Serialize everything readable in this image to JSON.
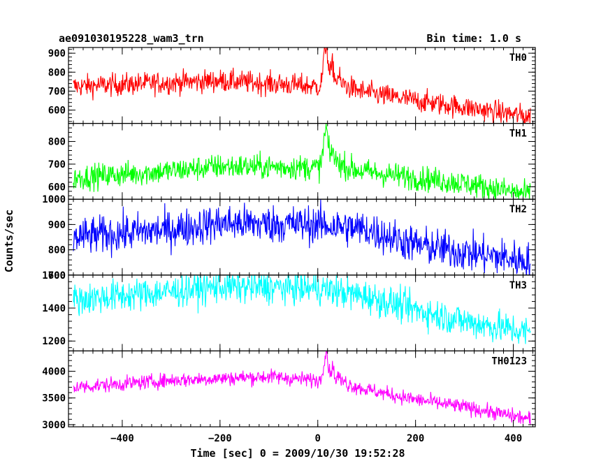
{
  "chart_data": {
    "type": "line",
    "title": "ae091030195228_wam3_trn",
    "bin_label": "Bin time: 1.0 s",
    "xlabel": "Time [sec] 0 = 2009/10/30 19:52:28",
    "ylabel": "Counts/sec",
    "xlim": [
      -510,
      445
    ],
    "x_ticks": [
      -400,
      -200,
      0,
      200,
      400
    ],
    "x_tick_labels": [
      "−400",
      "−200",
      "0",
      "200",
      "400"
    ],
    "x_range": [
      -500,
      435
    ],
    "burst_time": 15,
    "panels": [
      {
        "name": "TH0",
        "color": "#ff0000",
        "ylim": [
          530,
          930
        ],
        "y_ticks": [
          600,
          700,
          800,
          900
        ],
        "y_tick_labels": [
          "600",
          "700",
          "800",
          "900"
        ],
        "trend": [
          [
            -500,
            725
          ],
          [
            -300,
            745
          ],
          [
            -200,
            755
          ],
          [
            0,
            725
          ],
          [
            40,
            715
          ],
          [
            200,
            650
          ],
          [
            300,
            615
          ],
          [
            435,
            565
          ]
        ],
        "noise": 30,
        "burst": {
          "peak": 185,
          "width": 9
        }
      },
      {
        "name": "TH1",
        "color": "#00ff00",
        "ylim": [
          545,
          880
        ],
        "y_ticks": [
          600,
          700,
          800
        ],
        "y_tick_labels": [
          "600",
          "700",
          "800"
        ],
        "trend": [
          [
            -500,
            640
          ],
          [
            -300,
            670
          ],
          [
            -200,
            690
          ],
          [
            0,
            685
          ],
          [
            40,
            680
          ],
          [
            200,
            640
          ],
          [
            300,
            615
          ],
          [
            435,
            565
          ]
        ],
        "noise": 28,
        "burst": {
          "peak": 145,
          "width": 8
        }
      },
      {
        "name": "TH2",
        "color": "#0000ff",
        "ylim": [
          700,
          1000
        ],
        "y_ticks": [
          700,
          800,
          900,
          1000
        ],
        "y_tick_labels": [
          "700",
          "800",
          "900",
          "1000"
        ],
        "trend": [
          [
            -500,
            850
          ],
          [
            -300,
            880
          ],
          [
            -200,
            905
          ],
          [
            0,
            900
          ],
          [
            100,
            880
          ],
          [
            200,
            820
          ],
          [
            300,
            790
          ],
          [
            435,
            755
          ]
        ],
        "noise": 38,
        "burst": {
          "peak": 0,
          "width": 8
        }
      },
      {
        "name": "TH3",
        "color": "#00ffff",
        "ylim": [
          1140,
          1600
        ],
        "y_ticks": [
          1200,
          1400,
          1600
        ],
        "y_tick_labels": [
          "1200",
          "1400",
          "1600"
        ],
        "trend": [
          [
            -500,
            1450
          ],
          [
            -300,
            1500
          ],
          [
            -200,
            1530
          ],
          [
            0,
            1520
          ],
          [
            100,
            1470
          ],
          [
            200,
            1390
          ],
          [
            300,
            1320
          ],
          [
            435,
            1250
          ]
        ],
        "noise": 50,
        "burst": {
          "peak": 0,
          "width": 8
        }
      },
      {
        "name": "TH0123",
        "color": "#ff00ff",
        "ylim": [
          2960,
          4380
        ],
        "y_ticks": [
          3000,
          3500,
          4000
        ],
        "y_tick_labels": [
          "3000",
          "3500",
          "4000"
        ],
        "trend": [
          [
            -500,
            3700
          ],
          [
            -300,
            3830
          ],
          [
            -100,
            3900
          ],
          [
            0,
            3830
          ],
          [
            40,
            3760
          ],
          [
            200,
            3470
          ],
          [
            300,
            3330
          ],
          [
            435,
            3100
          ]
        ],
        "noise": 70,
        "burst": {
          "peak": 470,
          "width": 9
        }
      }
    ]
  }
}
